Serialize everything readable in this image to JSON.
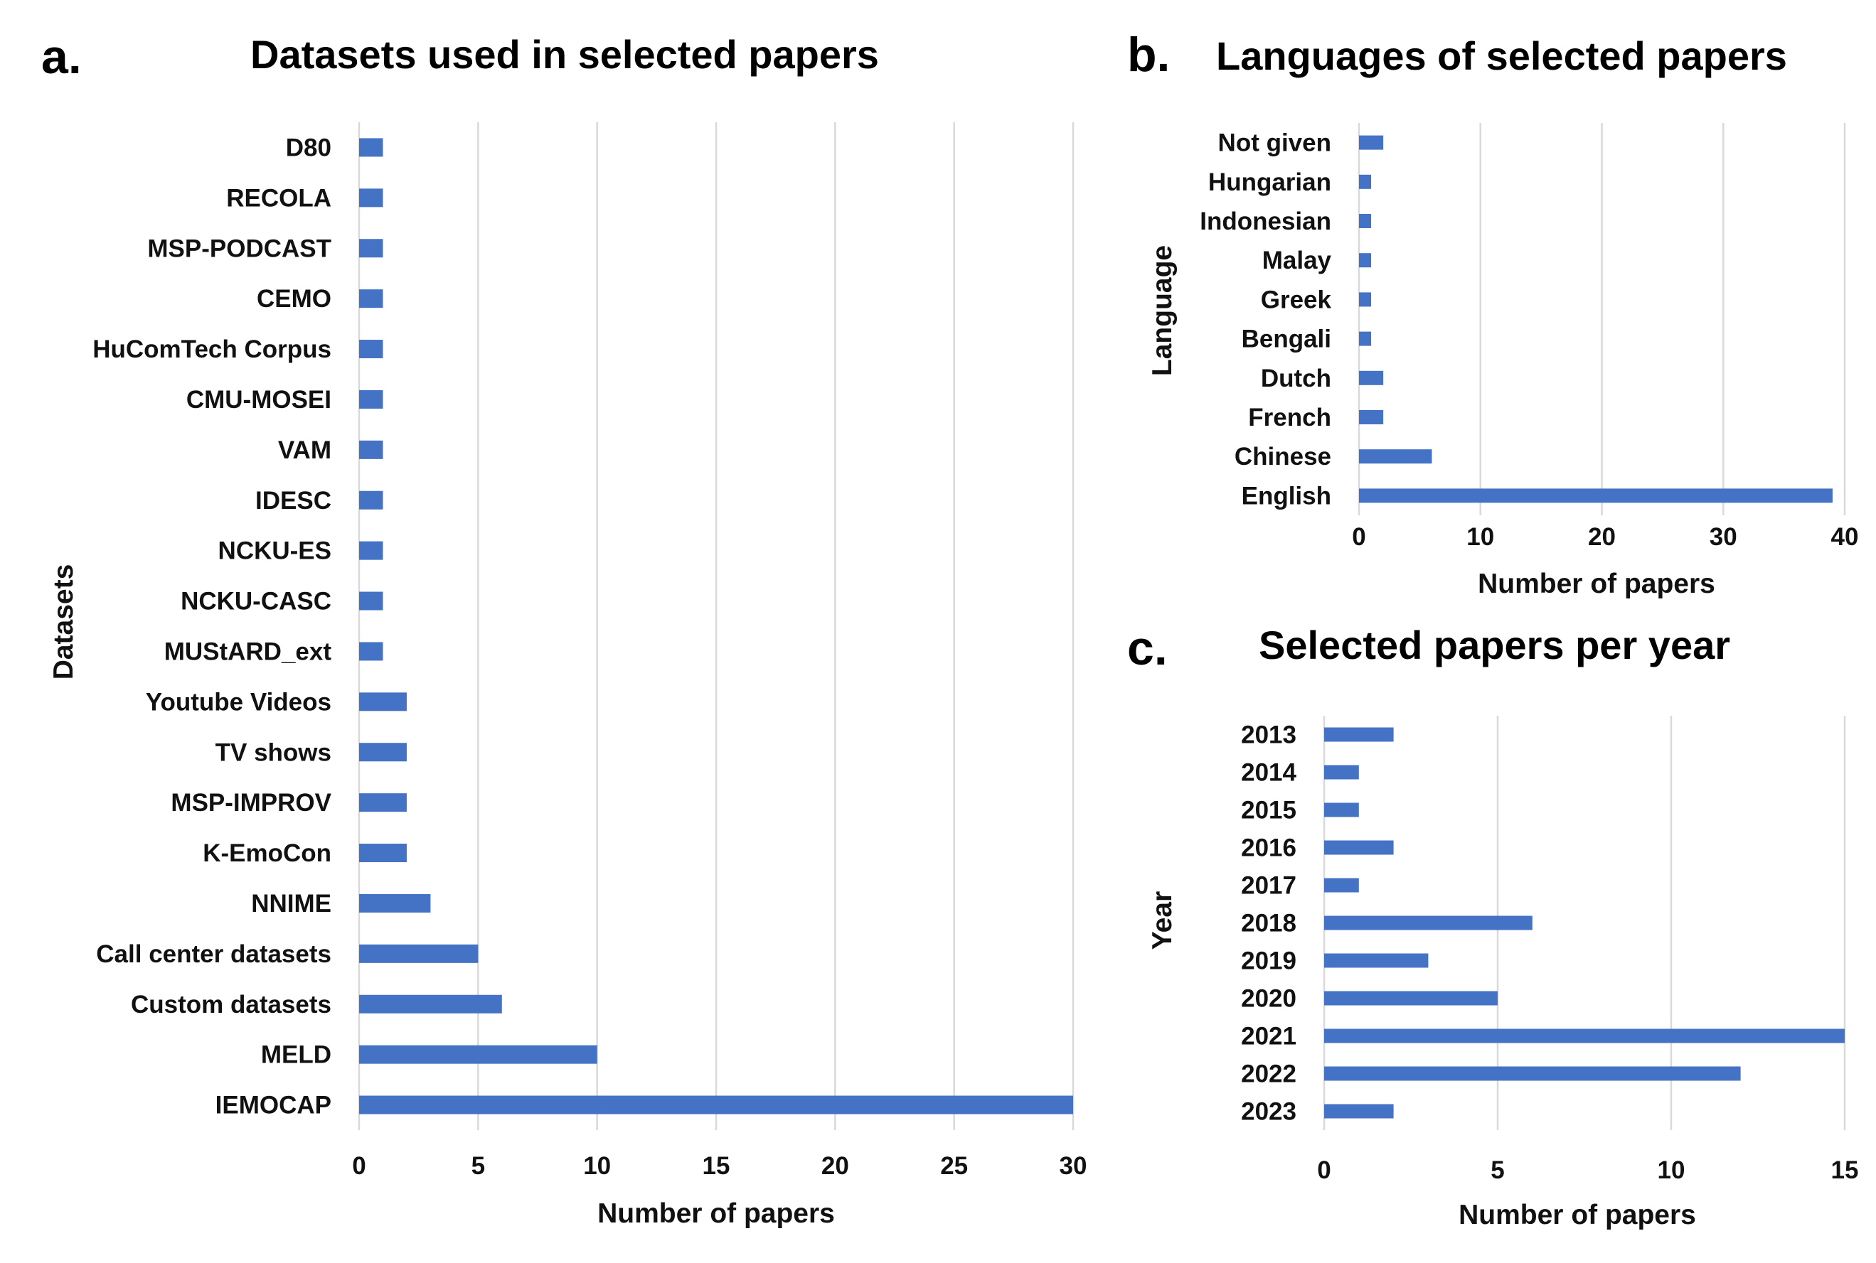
{
  "chart_data": [
    {
      "type": "bar",
      "orientation": "horizontal",
      "panel_label": "a.",
      "title": "Datasets used in selected papers",
      "xlabel": "Number of papers",
      "ylabel": "Datasets",
      "xlim": [
        0,
        30
      ],
      "xticks": [
        0,
        5,
        10,
        15,
        20,
        25,
        30
      ],
      "grid": true,
      "color": "#4472C4",
      "categories": [
        "D80",
        "RECOLA",
        "MSP-PODCAST",
        "CEMO",
        "HuComTech Corpus",
        "CMU-MOSEI",
        "VAM",
        "IDESC",
        "NCKU-ES",
        "NCKU-CASC",
        "MUStARD_ext",
        "Youtube Videos",
        "TV shows",
        "MSP-IMPROV",
        "K-EmoCon",
        "NNIME",
        "Call center datasets",
        "Custom datasets",
        "MELD",
        "IEMOCAP"
      ],
      "values": [
        1,
        1,
        1,
        1,
        1,
        1,
        1,
        1,
        1,
        1,
        1,
        2,
        2,
        2,
        2,
        3,
        5,
        6,
        10,
        30
      ]
    },
    {
      "type": "bar",
      "orientation": "horizontal",
      "panel_label": "b.",
      "title": "Languages of selected papers",
      "xlabel": "Number of papers",
      "ylabel": "Language",
      "xlim": [
        0,
        40
      ],
      "xticks": [
        0,
        10,
        20,
        30,
        40
      ],
      "grid": true,
      "color": "#4472C4",
      "categories": [
        "Not given",
        "Hungarian",
        "Indonesian",
        "Malay",
        "Greek",
        "Bengali",
        "Dutch",
        "French",
        "Chinese",
        "English"
      ],
      "values": [
        2,
        1,
        1,
        1,
        1,
        1,
        2,
        2,
        6,
        39
      ]
    },
    {
      "type": "bar",
      "orientation": "horizontal",
      "panel_label": "c.",
      "title": "Selected papers per year",
      "xlabel": "Number of papers",
      "ylabel": "Year",
      "xlim": [
        0,
        15
      ],
      "xticks": [
        0,
        5,
        10,
        15
      ],
      "grid": true,
      "color": "#4472C4",
      "categories": [
        "2013",
        "2014",
        "2015",
        "2016",
        "2017",
        "2018",
        "2019",
        "2020",
        "2021",
        "2022",
        "2023"
      ],
      "values": [
        2,
        1,
        1,
        2,
        1,
        6,
        3,
        5,
        15,
        12,
        2
      ]
    }
  ]
}
